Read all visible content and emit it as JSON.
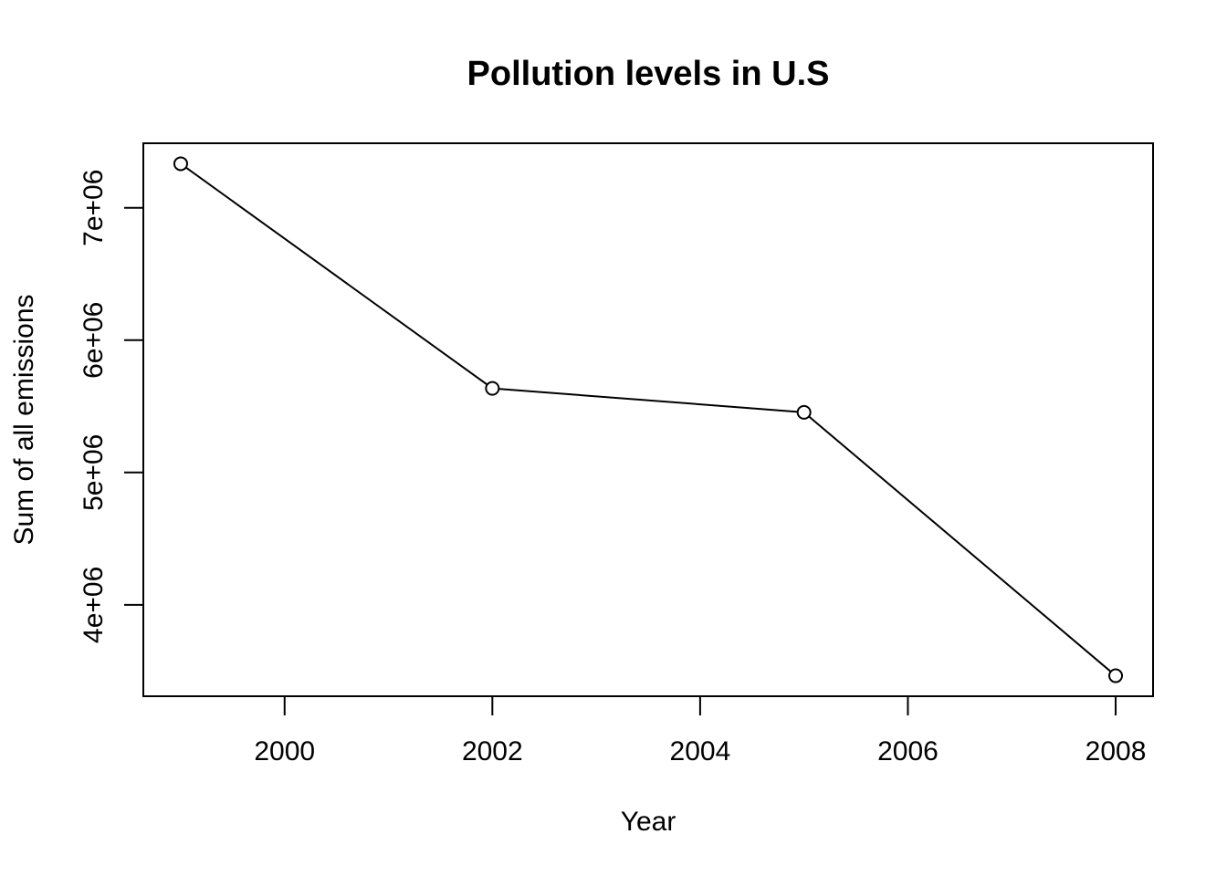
{
  "chart_data": {
    "type": "line",
    "title": "Pollution levels in U.S",
    "xlabel": "Year",
    "ylabel": "Sum of all emissions",
    "x": [
      1999,
      2002,
      2005,
      2008
    ],
    "series": [
      {
        "values": [
          7332967,
          5635780,
          5454703,
          3464206
        ]
      }
    ],
    "xticks": [
      2000,
      2002,
      2004,
      2006,
      2008
    ],
    "xtick_labels": [
      "2000",
      "2002",
      "2004",
      "2006",
      "2008"
    ],
    "yticks": [
      4000000,
      5000000,
      6000000,
      7000000
    ],
    "ytick_labels": [
      "4e+06",
      "5e+06",
      "6e+06",
      "7e+06"
    ],
    "xlim": [
      1998.64,
      2008.36
    ],
    "ylim": [
      3309496,
      7487677
    ],
    "marker": "open-circle",
    "line_color": "#000000",
    "grid": false,
    "legend": "none"
  }
}
